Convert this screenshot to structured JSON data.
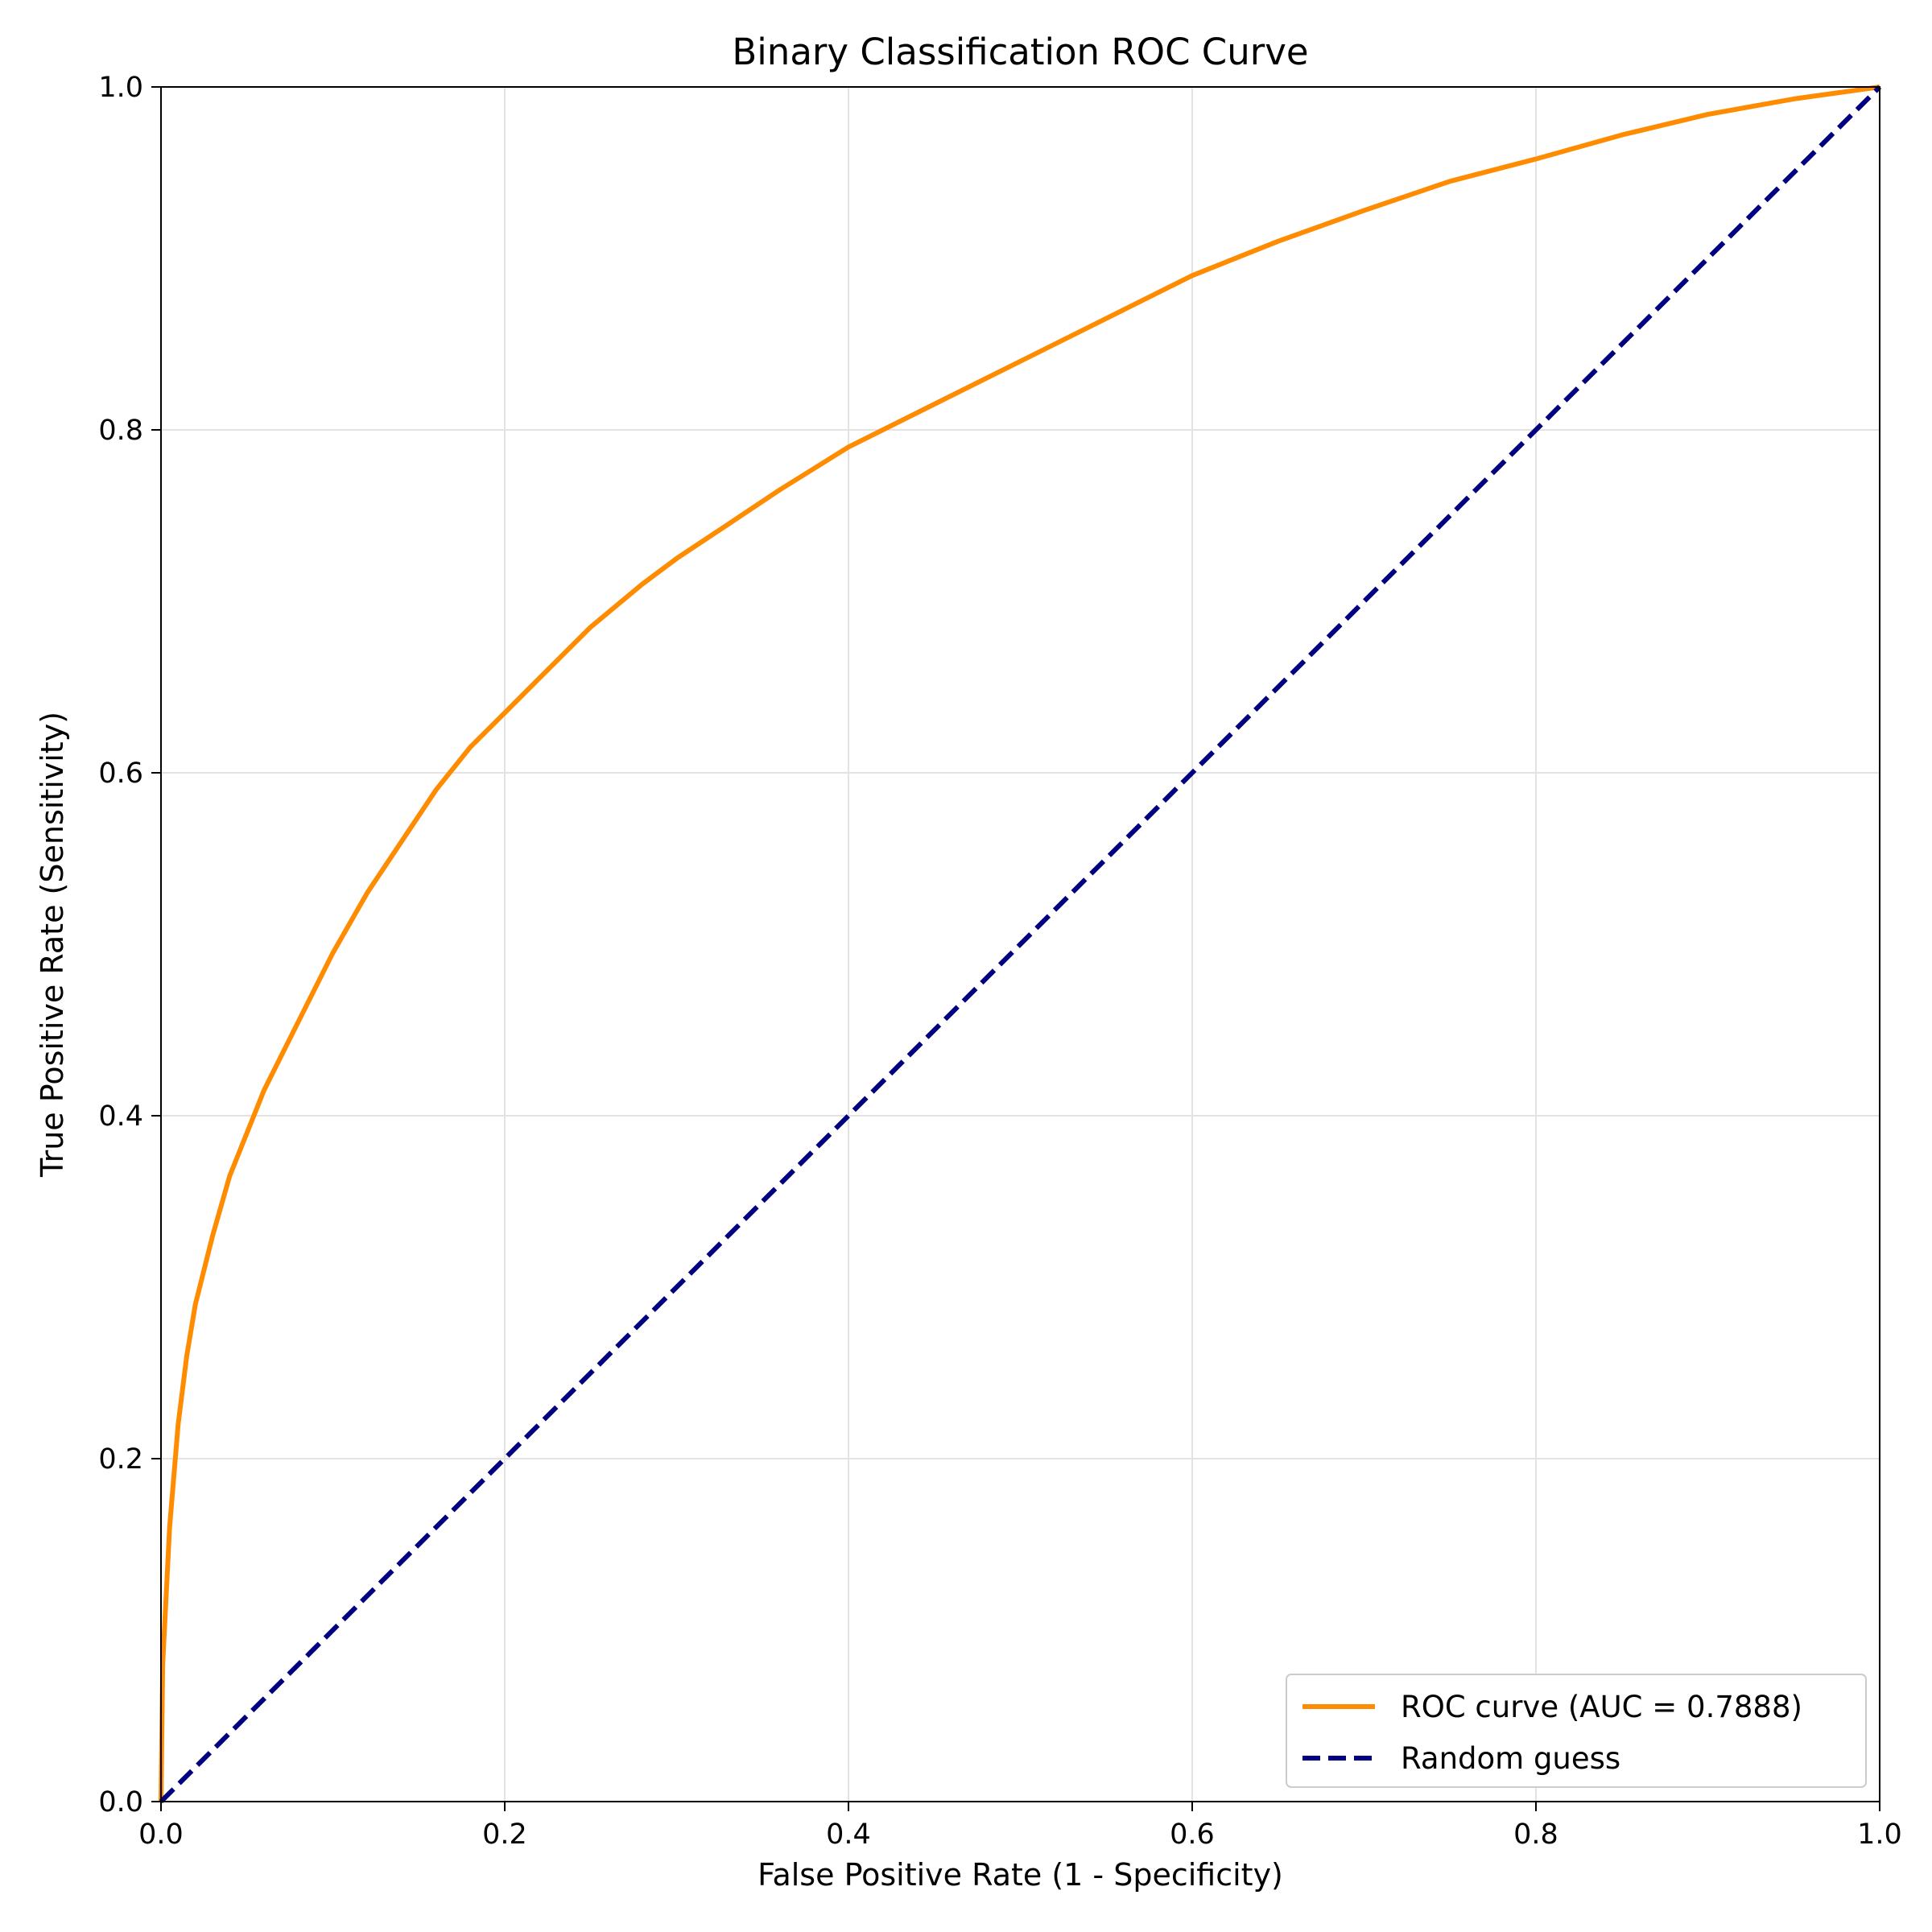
{
  "chart_data": {
    "type": "line",
    "title": "Binary Classification ROC Curve",
    "xlabel": "False Positive Rate (1 - Specificity)",
    "ylabel": "True Positive Rate (Sensitivity)",
    "xlim": [
      0.0,
      1.0
    ],
    "ylim": [
      0.0,
      1.0
    ],
    "x_ticks": [
      "0.0",
      "0.2",
      "0.4",
      "0.6",
      "0.8",
      "1.0"
    ],
    "y_ticks": [
      "0.0",
      "0.2",
      "0.4",
      "0.6",
      "0.8",
      "1.0"
    ],
    "grid": true,
    "legend_position": "lower-right",
    "series": [
      {
        "name": "ROC curve (AUC = 0.7888)",
        "color": "#ff8c00",
        "style": "solid",
        "x": [
          0.0,
          0.001,
          0.003,
          0.005,
          0.01,
          0.015,
          0.02,
          0.03,
          0.04,
          0.05,
          0.06,
          0.08,
          0.1,
          0.12,
          0.14,
          0.16,
          0.18,
          0.2,
          0.22,
          0.25,
          0.28,
          0.3,
          0.33,
          0.36,
          0.4,
          0.44,
          0.48,
          0.52,
          0.56,
          0.6,
          0.65,
          0.7,
          0.75,
          0.8,
          0.85,
          0.9,
          0.95,
          1.0
        ],
        "y": [
          0.0,
          0.08,
          0.12,
          0.16,
          0.22,
          0.26,
          0.29,
          0.33,
          0.365,
          0.39,
          0.415,
          0.455,
          0.495,
          0.53,
          0.56,
          0.59,
          0.615,
          0.635,
          0.655,
          0.685,
          0.71,
          0.725,
          0.745,
          0.765,
          0.79,
          0.81,
          0.83,
          0.85,
          0.87,
          0.89,
          0.91,
          0.928,
          0.945,
          0.958,
          0.972,
          0.984,
          0.993,
          1.0
        ]
      },
      {
        "name": "Random guess",
        "color": "#000080",
        "style": "dashed",
        "x": [
          0.0,
          1.0
        ],
        "y": [
          0.0,
          1.0
        ]
      }
    ]
  }
}
